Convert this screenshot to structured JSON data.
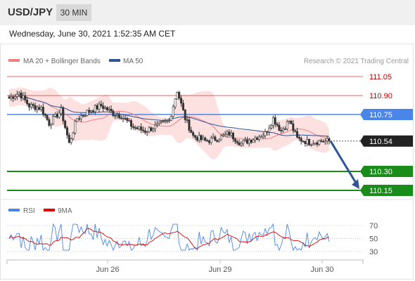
{
  "header": {
    "symbol": "USD/JPY",
    "timeframe": "30 MIN"
  },
  "timestamp": "Wednesday, June 30, 2021 1:52:35 AM CET",
  "legend": {
    "ma20": "MA 20 + Bollinger Bands",
    "ma50": "MA 50",
    "credit": "Research © 2021 Trading Central",
    "rsi": "RSI",
    "rsi_ma": "9MA"
  },
  "colors": {
    "ma20": "#f08080",
    "ma50": "#2f5597",
    "bollinger_fill": "#fde0e0",
    "resistance": "#e06666",
    "pivot": "#4a86e8",
    "support": "#1a8c1a",
    "arrow": "#2f5597",
    "candle": "#333333",
    "rsi": "#4a86e8",
    "rsi_ma": "#e00000"
  },
  "chart_data": [
    {
      "type": "candlestick",
      "ylim": [
        110.1,
        111.1
      ],
      "x_ticks": [
        "Jun 26",
        "Jun 29",
        "Jun 30"
      ],
      "levels": [
        {
          "label": "111.05",
          "value": 111.05,
          "kind": "resistance"
        },
        {
          "label": "110.90",
          "value": 110.9,
          "kind": "resistance"
        },
        {
          "label": "110.75",
          "value": 110.75,
          "kind": "pivot"
        },
        {
          "label": "110.54",
          "value": 110.54,
          "kind": "last"
        },
        {
          "label": "110.30",
          "value": 110.3,
          "kind": "support"
        },
        {
          "label": "110.15",
          "value": 110.15,
          "kind": "support"
        }
      ],
      "last_price": 110.54,
      "target_price": 110.15,
      "anchors": [
        [
          0,
          110.88
        ],
        [
          5,
          110.92
        ],
        [
          10,
          110.82
        ],
        [
          16,
          110.8
        ],
        [
          20,
          110.68
        ],
        [
          26,
          110.78
        ],
        [
          30,
          110.52
        ],
        [
          34,
          110.72
        ],
        [
          40,
          110.78
        ],
        [
          46,
          110.82
        ],
        [
          52,
          110.76
        ],
        [
          56,
          110.74
        ],
        [
          62,
          110.65
        ],
        [
          68,
          110.62
        ],
        [
          74,
          110.66
        ],
        [
          80,
          110.7
        ],
        [
          84,
          110.94
        ],
        [
          88,
          110.72
        ],
        [
          92,
          110.58
        ],
        [
          98,
          110.54
        ],
        [
          104,
          110.56
        ],
        [
          110,
          110.6
        ],
        [
          116,
          110.52
        ],
        [
          122,
          110.56
        ],
        [
          128,
          110.6
        ],
        [
          132,
          110.72
        ],
        [
          136,
          110.62
        ],
        [
          140,
          110.7
        ],
        [
          144,
          110.56
        ],
        [
          150,
          110.53
        ],
        [
          156,
          110.54
        ],
        [
          160,
          110.54
        ]
      ]
    },
    {
      "type": "line",
      "name": "RSI",
      "ylim": [
        30,
        70
      ],
      "y_ticks": [
        70,
        50,
        30
      ]
    }
  ]
}
